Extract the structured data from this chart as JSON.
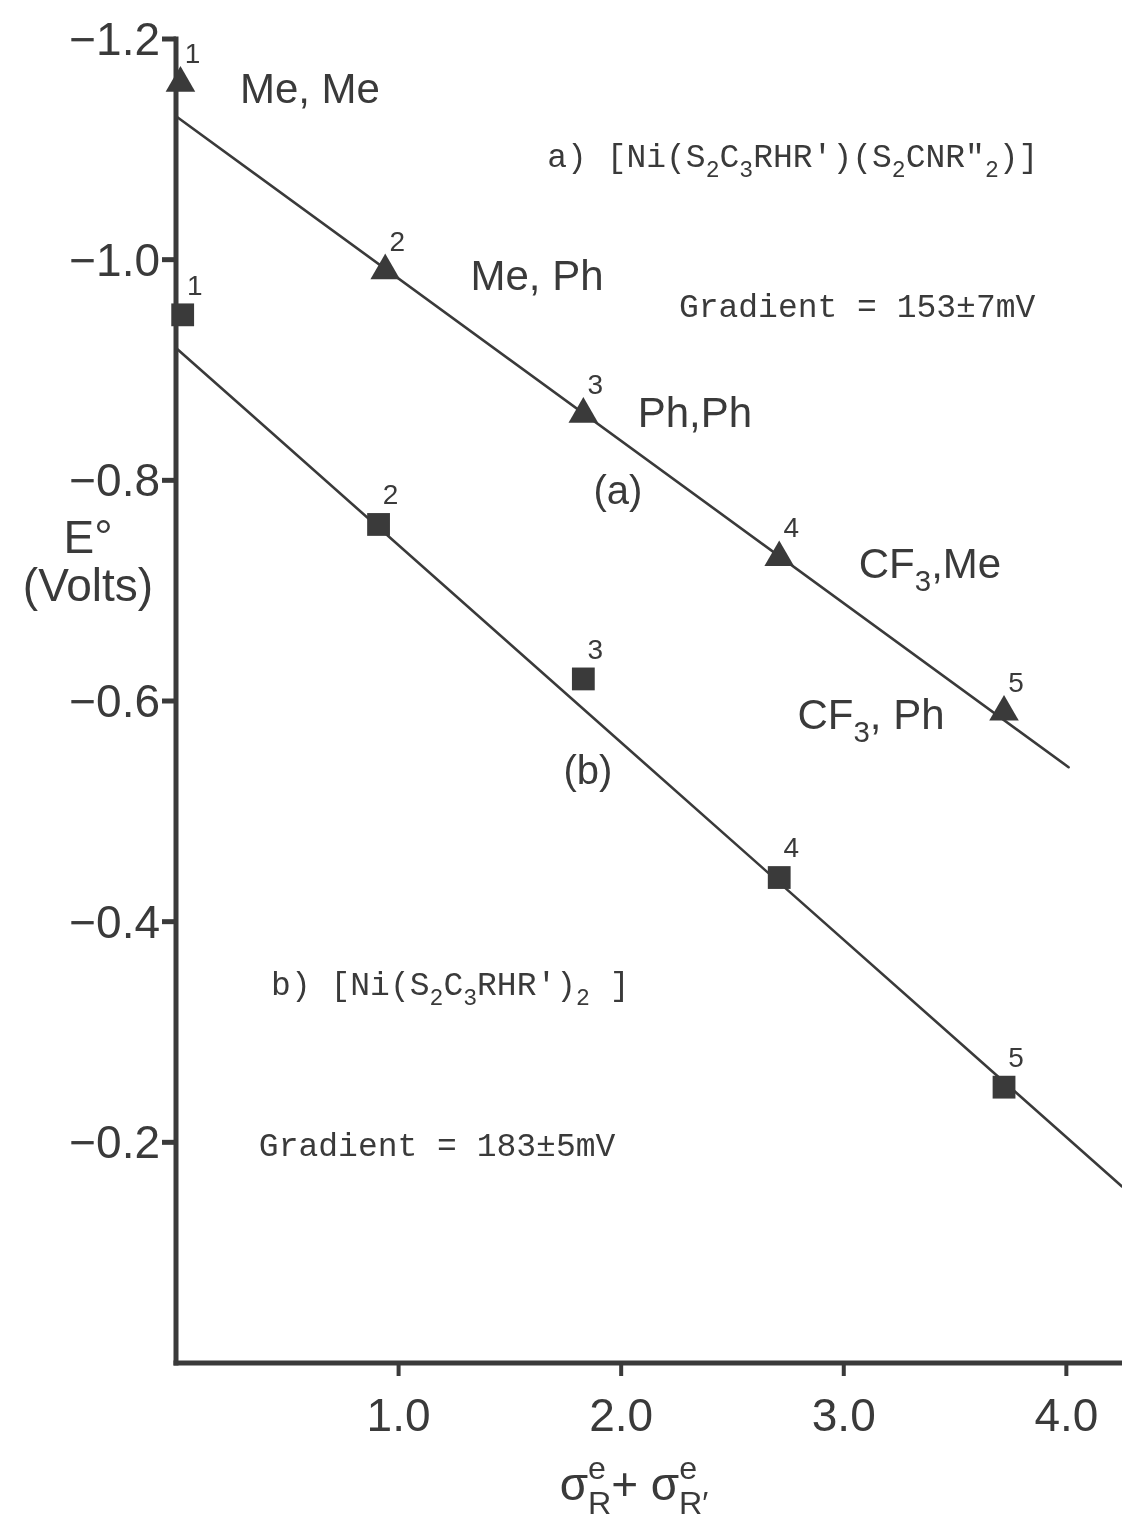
{
  "chart_data": {
    "type": "scatter",
    "xlabel": "σ$^{e}$$_{R}$+ σ$^{e}$$_{R′}$",
    "ylabel": "E°\n(Volts)",
    "xlim": [
      0,
      4.25
    ],
    "ylim": [
      0,
      -1.2
    ],
    "xticks": [
      {
        "value": 1,
        "label": "1.0"
      },
      {
        "value": 2,
        "label": "2.0"
      },
      {
        "value": 3,
        "label": "3.0"
      },
      {
        "value": 4,
        "label": "4.0"
      }
    ],
    "yticks": [
      {
        "value": -1.2,
        "label": "−1.2"
      },
      {
        "value": -1.0,
        "label": "−1.0"
      },
      {
        "value": -0.8,
        "label": "−0.8"
      },
      {
        "value": -0.6,
        "label": "−0.6"
      },
      {
        "value": -0.4,
        "label": "−0.4"
      },
      {
        "value": -0.2,
        "label": "−0.2"
      }
    ],
    "series": [
      {
        "type": "line",
        "marker": "none",
        "color": "#3a3a3a",
        "x": [
          0,
          4.01
        ],
        "values": [
          -1.13,
          -0.54
        ]
      },
      {
        "type": "line",
        "marker": "none",
        "color": "#3a3a3a",
        "x": [
          0,
          4.25
        ],
        "values": [
          -0.92,
          -0.16
        ]
      },
      {
        "marker": "triangle",
        "color": "#3a3a3a",
        "x": [
          0.02,
          0.94,
          1.83,
          2.71,
          3.72
        ],
        "values": [
          -1.16,
          -0.99,
          -0.86,
          -0.73,
          -0.59
        ]
      },
      {
        "marker": "square",
        "color": "#3a3a3a",
        "x": [
          0.03,
          0.91,
          1.83,
          2.71,
          3.72
        ],
        "values": [
          -0.95,
          -0.76,
          -0.62,
          -0.44,
          -0.25
        ]
      }
    ],
    "annotations": [
      "a) [Ni(S$_{2}$C$_{3}$RHR′)(S$_{2}$CNR″$_{2}$)]",
      "Gradient = 153±7mV",
      "b) [Ni(S$_{2}$C$_{3}$RHR′)$_{2}$ ]",
      "Gradient = 183±5mV",
      "Me, Me",
      "Me, Ph",
      "Ph,Ph",
      "CF$_{3}$,Me",
      "CF$_{3}$, Ph",
      "(a)",
      "(b)",
      {
        "text": "1",
        "x": 0.02,
        "y": -1.16
      },
      {
        "text": "2",
        "x": 0.94,
        "y": -0.99
      },
      {
        "text": "3",
        "x": 1.83,
        "y": -0.86
      },
      {
        "text": "4",
        "x": 2.71,
        "y": -0.73
      },
      {
        "text": "5",
        "x": 3.72,
        "y": -0.59
      },
      {
        "text": "1",
        "x": 0.03,
        "y": -0.95
      },
      {
        "text": "2",
        "x": 0.91,
        "y": -0.76
      },
      {
        "text": "3",
        "x": 1.83,
        "y": -0.62
      },
      {
        "text": "4",
        "x": 2.71,
        "y": -0.44
      },
      {
        "text": "5",
        "x": 3.72,
        "y": -0.25
      }
    ]
  }
}
